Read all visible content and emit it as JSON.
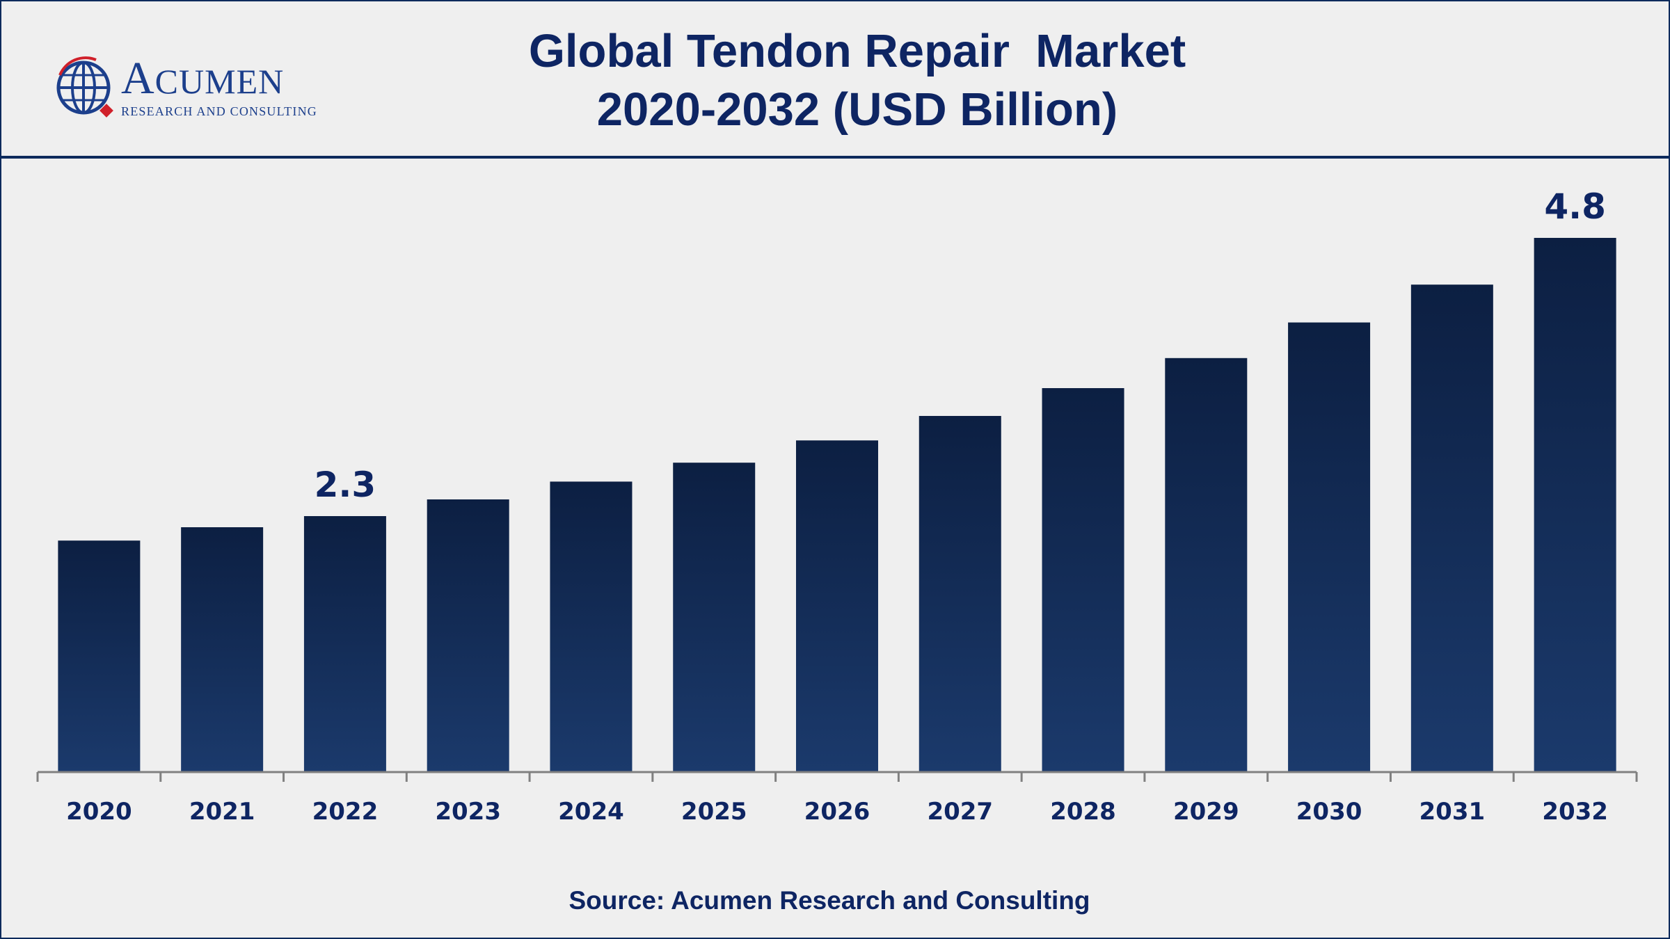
{
  "header": {
    "title_line1": "Global Tendon Repair  Market",
    "title_line2": "2020-2032 (USD Billion)"
  },
  "logo": {
    "word": "Acumen",
    "tagline": "RESEARCH AND CONSULTING",
    "icon": "globe-icon"
  },
  "source": "Source: Acumen Research and Consulting",
  "colors": {
    "bar_top": "#0c1f42",
    "bar_bottom": "#1b3a6c",
    "text": "#0e2563",
    "axis": "#808080"
  },
  "chart_data": {
    "type": "bar",
    "categories": [
      "2020",
      "2021",
      "2022",
      "2023",
      "2024",
      "2025",
      "2026",
      "2027",
      "2028",
      "2029",
      "2030",
      "2031",
      "2032"
    ],
    "values": [
      2.08,
      2.2,
      2.3,
      2.45,
      2.61,
      2.78,
      2.98,
      3.2,
      3.45,
      3.72,
      4.04,
      4.38,
      4.8
    ],
    "labels": [
      {
        "category": "2022",
        "text": "2.3"
      },
      {
        "category": "2032",
        "text": "4.8"
      }
    ],
    "xlabel": "",
    "ylabel": "",
    "ylim": [
      0,
      4.8
    ],
    "grid": false,
    "legend": "none"
  }
}
